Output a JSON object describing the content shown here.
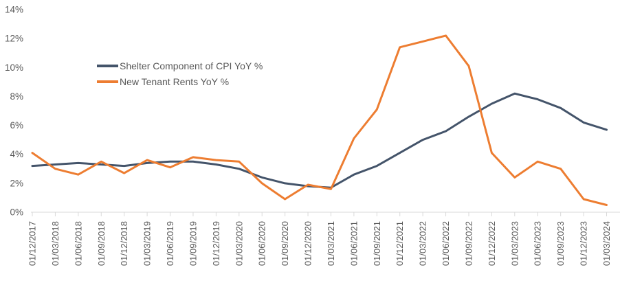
{
  "figure": {
    "background": "#FFFFFF",
    "axis_line_color": "#D9D9D9",
    "tick_color": "#D9D9D9",
    "axis_text_color": "#595959"
  },
  "chart_data": {
    "type": "line",
    "title": "",
    "xlabel": "",
    "ylabel": "",
    "grid": false,
    "legend_position": "inside-top-left",
    "ylim": [
      0,
      14
    ],
    "yticks": [
      0,
      2,
      4,
      6,
      8,
      10,
      12,
      14
    ],
    "ytick_labels": [
      "0%",
      "2%",
      "4%",
      "6%",
      "8%",
      "10%",
      "12%",
      "14%"
    ],
    "categories": [
      "01/12/2017",
      "01/03/2018",
      "01/06/2018",
      "01/09/2018",
      "01/12/2018",
      "01/03/2019",
      "01/06/2019",
      "01/09/2019",
      "01/12/2019",
      "01/03/2020",
      "01/06/2020",
      "01/09/2020",
      "01/12/2020",
      "01/03/2021",
      "01/06/2021",
      "01/09/2021",
      "01/12/2021",
      "01/03/2022",
      "01/06/2022",
      "01/09/2022",
      "01/12/2022",
      "01/03/2023",
      "01/06/2023",
      "01/09/2023",
      "01/12/2023",
      "01/03/2024"
    ],
    "series": [
      {
        "name": "Shelter Component of CPI YoY %",
        "color": "#44546A",
        "values": [
          3.2,
          3.3,
          3.4,
          3.3,
          3.2,
          3.4,
          3.5,
          3.5,
          3.3,
          3.0,
          2.4,
          2.0,
          1.8,
          1.7,
          2.6,
          3.2,
          4.1,
          5.0,
          5.6,
          6.6,
          7.5,
          8.2,
          7.8,
          7.2,
          6.2,
          5.7
        ]
      },
      {
        "name": "New Tenant Rents YoY %",
        "color": "#ED7D31",
        "values": [
          4.1,
          3.0,
          2.6,
          3.5,
          2.7,
          3.6,
          3.1,
          3.8,
          3.6,
          3.5,
          2.0,
          0.9,
          1.9,
          1.6,
          5.1,
          7.1,
          11.4,
          11.8,
          12.2,
          10.1,
          4.1,
          2.4,
          3.5,
          3.0,
          0.9,
          0.5
        ]
      }
    ]
  }
}
